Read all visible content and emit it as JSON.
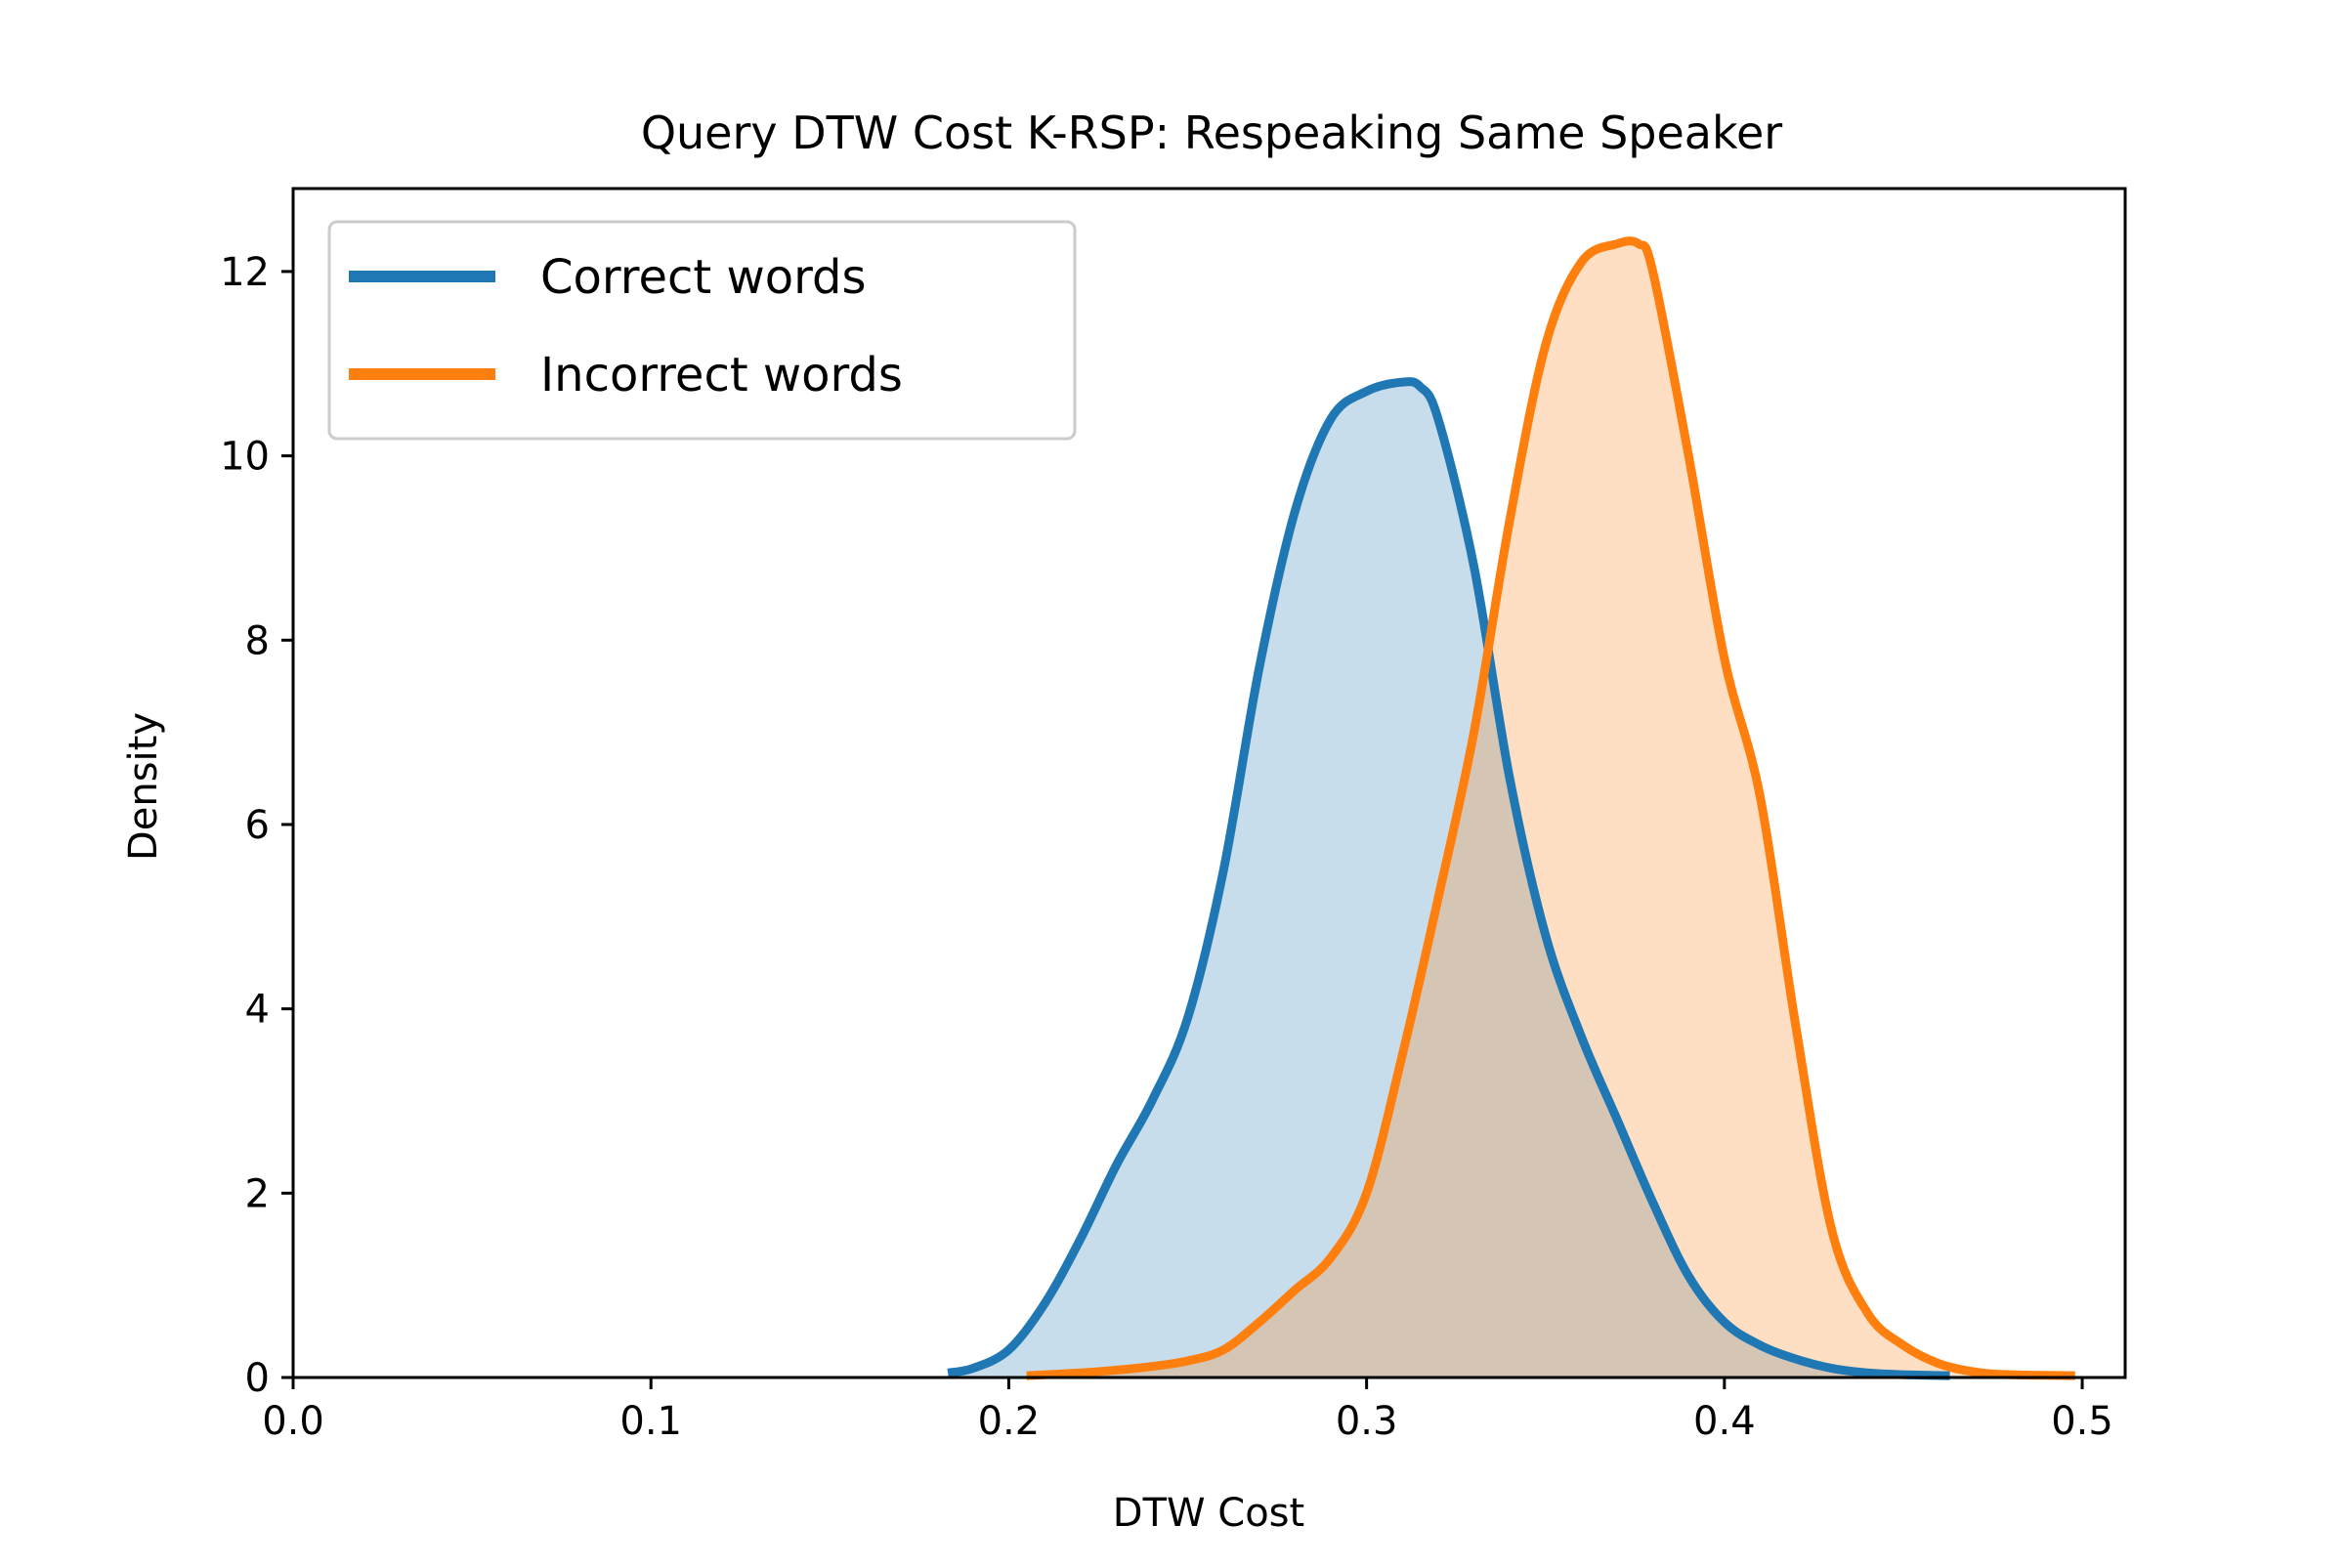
{
  "chart_data": {
    "type": "area",
    "title": "Query DTW Cost K-RSP: Respeaking Same Speaker",
    "xlabel": "DTW Cost",
    "ylabel": "Density",
    "xlim": [
      0.0,
      0.512
    ],
    "ylim": [
      0,
      12.9
    ],
    "xticks": [
      0.0,
      0.1,
      0.2,
      0.3,
      0.4,
      0.5
    ],
    "xtick_labels": [
      "0.0",
      "0.1",
      "0.2",
      "0.3",
      "0.4",
      "0.5"
    ],
    "yticks": [
      0,
      2,
      4,
      6,
      8,
      10,
      12
    ],
    "ytick_labels": [
      "0",
      "2",
      "4",
      "6",
      "8",
      "10",
      "12"
    ],
    "grid": false,
    "legend_position": "top-left",
    "series": [
      {
        "name": "Correct words",
        "color": "#1f77b4",
        "x": [
          0.183,
          0.19,
          0.2,
          0.21,
          0.22,
          0.23,
          0.24,
          0.25,
          0.26,
          0.27,
          0.28,
          0.29,
          0.3,
          0.31,
          0.315,
          0.32,
          0.33,
          0.34,
          0.35,
          0.36,
          0.37,
          0.38,
          0.39,
          0.4,
          0.41,
          0.42,
          0.43,
          0.44,
          0.45,
          0.463
        ],
        "y": [
          0.05,
          0.1,
          0.3,
          0.8,
          1.5,
          2.3,
          3.0,
          3.9,
          5.5,
          7.7,
          9.4,
          10.4,
          10.7,
          10.8,
          10.75,
          10.4,
          8.8,
          6.5,
          4.8,
          3.7,
          2.8,
          1.9,
          1.1,
          0.6,
          0.35,
          0.2,
          0.1,
          0.05,
          0.03,
          0.02
        ]
      },
      {
        "name": "Incorrect words",
        "color": "#ff7f0e",
        "x": [
          0.205,
          0.22,
          0.23,
          0.24,
          0.25,
          0.26,
          0.27,
          0.28,
          0.29,
          0.3,
          0.31,
          0.32,
          0.33,
          0.34,
          0.35,
          0.36,
          0.37,
          0.376,
          0.38,
          0.39,
          0.4,
          0.41,
          0.42,
          0.43,
          0.44,
          0.45,
          0.46,
          0.47,
          0.48,
          0.498
        ],
        "y": [
          0.02,
          0.05,
          0.08,
          0.12,
          0.18,
          0.3,
          0.6,
          0.95,
          1.3,
          2.0,
          3.5,
          5.2,
          7.0,
          9.3,
          11.2,
          12.1,
          12.3,
          12.3,
          12.0,
          10.0,
          7.8,
          6.3,
          3.8,
          1.6,
          0.7,
          0.35,
          0.15,
          0.06,
          0.03,
          0.02
        ]
      }
    ]
  }
}
